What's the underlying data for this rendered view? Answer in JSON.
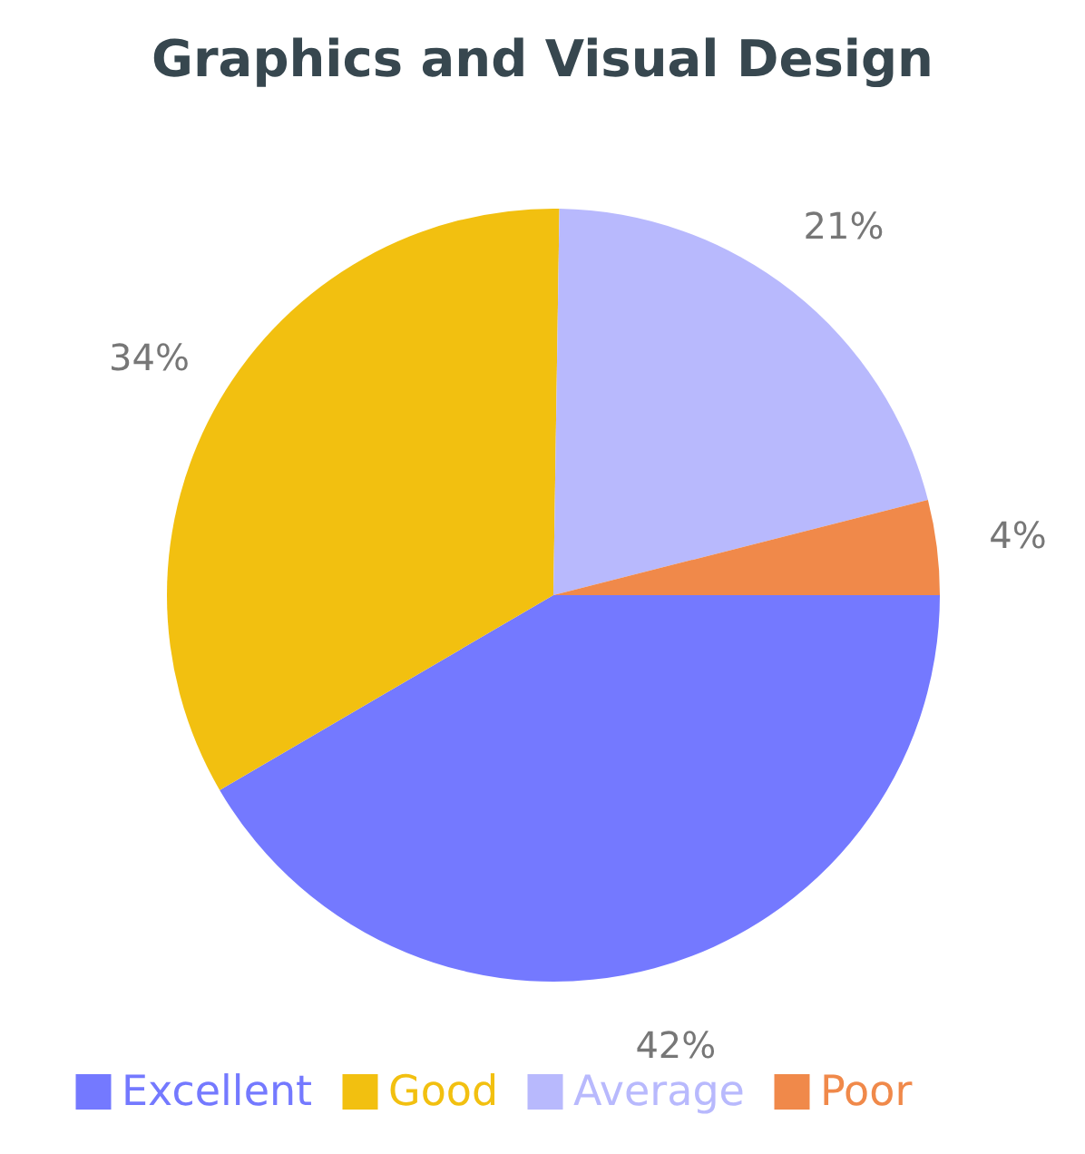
{
  "chart_data": {
    "type": "pie",
    "title": "Graphics and Visual Design",
    "categories": [
      "Excellent",
      "Good",
      "Average",
      "Poor"
    ],
    "values": [
      42,
      34,
      21,
      4
    ],
    "value_labels": [
      "42%",
      "34%",
      "21%",
      "4%"
    ],
    "colors": [
      "#7479ff",
      "#f2c010",
      "#b8b9fd",
      "#f0894a"
    ],
    "legend": "bottom"
  }
}
